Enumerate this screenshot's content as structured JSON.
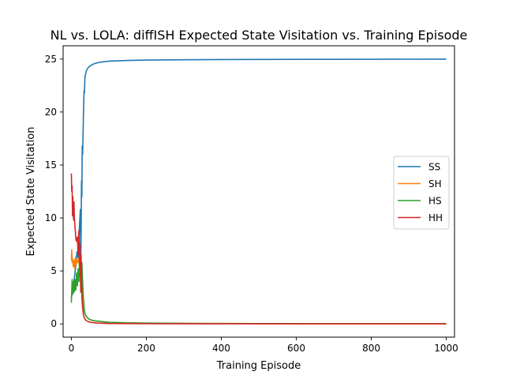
{
  "chart_data": {
    "type": "line",
    "title": "NL vs. LOLA: diffISH Expected State Visitation vs. Training Episode",
    "xlabel": "Training Episode",
    "ylabel": "Expected State Visitation",
    "xlim": [
      -22,
      1022
    ],
    "ylim": [
      -1.25,
      26.25
    ],
    "xticks": [
      0,
      200,
      400,
      600,
      800,
      1000
    ],
    "yticks": [
      0,
      5,
      10,
      15,
      20,
      25
    ],
    "grid": false,
    "legend_position": "center-right",
    "series": [
      {
        "name": "SS",
        "color": "#1f77b4",
        "points": [
          [
            0,
            2.5
          ],
          [
            3,
            3.2
          ],
          [
            6,
            3.8
          ],
          [
            9,
            4.6
          ],
          [
            12,
            5.6
          ],
          [
            15,
            6.8
          ],
          [
            18,
            6.2
          ],
          [
            20,
            7.8
          ],
          [
            22,
            9.5
          ],
          [
            24,
            10.8
          ],
          [
            25,
            5.5
          ],
          [
            26,
            8.5
          ],
          [
            27,
            13.5
          ],
          [
            28,
            12.0
          ],
          [
            29,
            16.8
          ],
          [
            30,
            16.0
          ],
          [
            31,
            17.5
          ],
          [
            32,
            19.5
          ],
          [
            33,
            21.0
          ],
          [
            34,
            22.0
          ],
          [
            35,
            21.8
          ],
          [
            36,
            23.2
          ],
          [
            38,
            23.6
          ],
          [
            40,
            23.9
          ],
          [
            45,
            24.2
          ],
          [
            50,
            24.35
          ],
          [
            60,
            24.55
          ],
          [
            70,
            24.65
          ],
          [
            80,
            24.72
          ],
          [
            100,
            24.8
          ],
          [
            150,
            24.87
          ],
          [
            200,
            24.9
          ],
          [
            300,
            24.93
          ],
          [
            400,
            24.95
          ],
          [
            600,
            24.97
          ],
          [
            800,
            24.98
          ],
          [
            1000,
            24.99
          ]
        ]
      },
      {
        "name": "SH",
        "color": "#ff7f0e",
        "points": [
          [
            0,
            6.0
          ],
          [
            1,
            7.0
          ],
          [
            2,
            5.8
          ],
          [
            3,
            6.2
          ],
          [
            5,
            5.4
          ],
          [
            7,
            6.0
          ],
          [
            9,
            5.2
          ],
          [
            11,
            6.3
          ],
          [
            13,
            5.6
          ],
          [
            15,
            6.0
          ],
          [
            17,
            5.8
          ],
          [
            19,
            6.2
          ],
          [
            21,
            5.5
          ],
          [
            23,
            4.8
          ],
          [
            25,
            3.8
          ],
          [
            27,
            4.5
          ],
          [
            29,
            3.0
          ],
          [
            31,
            2.2
          ],
          [
            33,
            1.5
          ],
          [
            35,
            1.1
          ],
          [
            38,
            0.8
          ],
          [
            42,
            0.6
          ],
          [
            50,
            0.4
          ],
          [
            60,
            0.3
          ],
          [
            80,
            0.22
          ],
          [
            100,
            0.15
          ],
          [
            150,
            0.1
          ],
          [
            200,
            0.07
          ],
          [
            300,
            0.05
          ],
          [
            500,
            0.03
          ],
          [
            700,
            0.02
          ],
          [
            1000,
            0.02
          ]
        ]
      },
      {
        "name": "HS",
        "color": "#2ca02c",
        "points": [
          [
            0,
            2.0
          ],
          [
            2,
            4.2
          ],
          [
            4,
            2.8
          ],
          [
            6,
            4.0
          ],
          [
            8,
            3.0
          ],
          [
            10,
            4.2
          ],
          [
            12,
            3.2
          ],
          [
            14,
            4.8
          ],
          [
            16,
            3.6
          ],
          [
            18,
            5.2
          ],
          [
            20,
            4.0
          ],
          [
            22,
            6.2
          ],
          [
            24,
            4.8
          ],
          [
            26,
            3.2
          ],
          [
            28,
            5.8
          ],
          [
            30,
            4.0
          ],
          [
            32,
            2.5
          ],
          [
            34,
            1.5
          ],
          [
            36,
            1.0
          ],
          [
            40,
            0.7
          ],
          [
            45,
            0.5
          ],
          [
            50,
            0.4
          ],
          [
            60,
            0.3
          ],
          [
            80,
            0.22
          ],
          [
            100,
            0.15
          ],
          [
            150,
            0.1
          ],
          [
            200,
            0.08
          ],
          [
            300,
            0.05
          ],
          [
            500,
            0.03
          ],
          [
            700,
            0.02
          ],
          [
            1000,
            0.02
          ]
        ]
      },
      {
        "name": "HH",
        "color": "#d62728",
        "points": [
          [
            0,
            14.2
          ],
          [
            1,
            12.5
          ],
          [
            2,
            13.0
          ],
          [
            3,
            10.2
          ],
          [
            4,
            12.0
          ],
          [
            5,
            10.5
          ],
          [
            6,
            9.8
          ],
          [
            7,
            11.5
          ],
          [
            8,
            10.0
          ],
          [
            10,
            9.0
          ],
          [
            12,
            8.0
          ],
          [
            14,
            7.8
          ],
          [
            16,
            8.2
          ],
          [
            18,
            6.5
          ],
          [
            20,
            8.8
          ],
          [
            22,
            6.0
          ],
          [
            23,
            7.5
          ],
          [
            24,
            5.0
          ],
          [
            25,
            3.0
          ],
          [
            26,
            6.5
          ],
          [
            27,
            4.0
          ],
          [
            28,
            2.5
          ],
          [
            30,
            1.5
          ],
          [
            32,
            0.9
          ],
          [
            35,
            0.5
          ],
          [
            40,
            0.3
          ],
          [
            50,
            0.15
          ],
          [
            70,
            0.08
          ],
          [
            100,
            0.04
          ],
          [
            200,
            0.02
          ],
          [
            400,
            0.01
          ],
          [
            1000,
            0.0
          ]
        ]
      }
    ]
  }
}
